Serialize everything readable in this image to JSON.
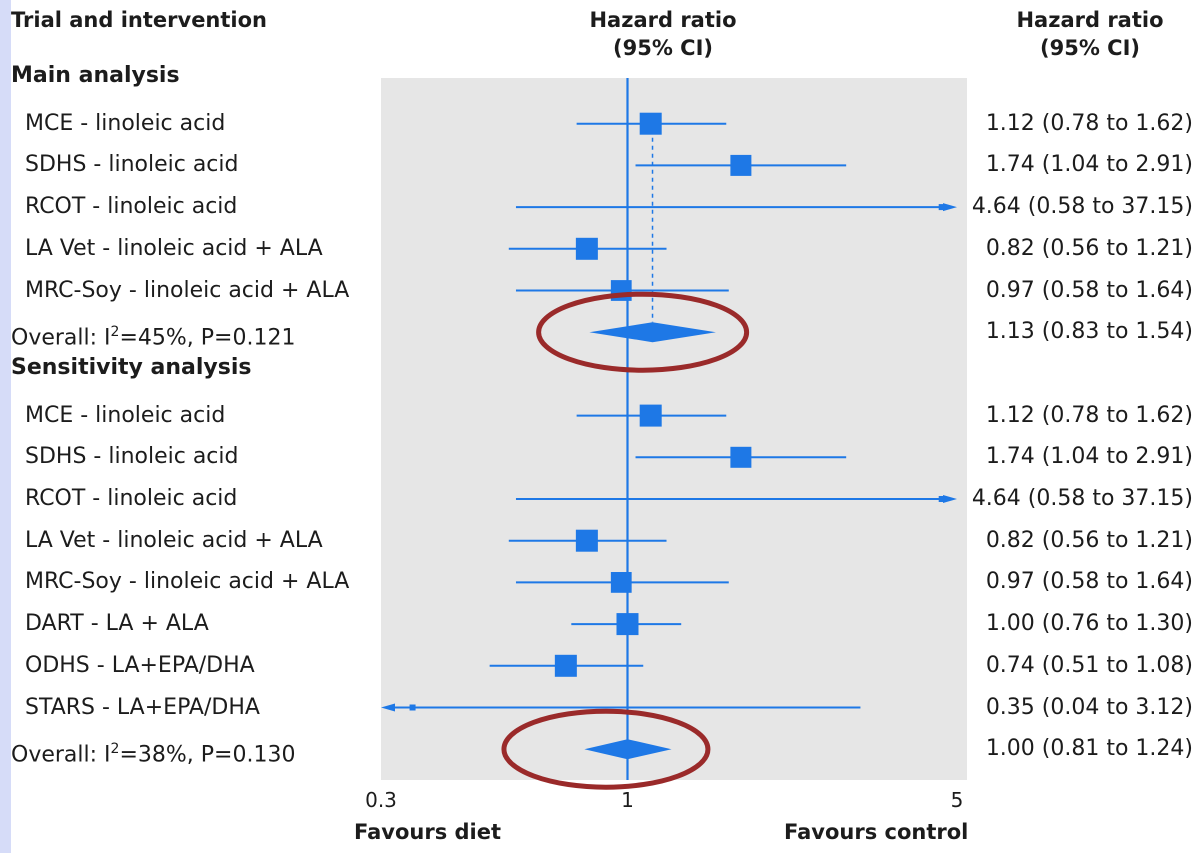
{
  "header": {
    "col1": "Trial and intervention",
    "col2_line1": "Hazard ratio",
    "col2_line2": "(95% CI)",
    "col3_line1": "Hazard ratio",
    "col3_line2": "(95% CI)"
  },
  "footer": {
    "left": "Favours diet",
    "right": "Favours control"
  },
  "colors": {
    "marker": "#1e78e6",
    "highlight": "#9a2a2a",
    "plot_bg": "#e6e6e6"
  },
  "chart_data": {
    "type": "forest",
    "xscale": "log",
    "xlim": [
      0.3,
      5
    ],
    "xticks": [
      {
        "value": 0.3,
        "label": "0.3"
      },
      {
        "value": 1,
        "label": "1"
      },
      {
        "value": 5,
        "label": "5"
      }
    ],
    "reference_line": 1,
    "sections": [
      {
        "title": "Main analysis",
        "pooled_reference": 1.13,
        "studies": [
          {
            "label": "MCE - linoleic acid",
            "hr": 1.12,
            "lo": 0.78,
            "hi": 1.62,
            "ci_text": "1.12 (0.78 to 1.62)"
          },
          {
            "label": "SDHS - linoleic acid",
            "hr": 1.74,
            "lo": 1.04,
            "hi": 2.91,
            "ci_text": "1.74 (1.04 to 2.91)"
          },
          {
            "label": "RCOT - linoleic acid",
            "hr": 4.64,
            "lo": 0.58,
            "hi": 37.15,
            "ci_text": "4.64 (0.58 to 37.15)"
          },
          {
            "label": "LA Vet - linoleic acid + ALA",
            "hr": 0.82,
            "lo": 0.56,
            "hi": 1.21,
            "ci_text": "0.82 (0.56 to 1.21)"
          },
          {
            "label": "MRC-Soy - linoleic acid + ALA",
            "hr": 0.97,
            "lo": 0.58,
            "hi": 1.64,
            "ci_text": "0.97 (0.58 to 1.64)"
          }
        ],
        "overall": {
          "label_pre": "Overall: I",
          "sup": "2",
          "label_post": "=45%, P=0.121",
          "hr": 1.13,
          "lo": 0.83,
          "hi": 1.54,
          "ci_text": "1.13 (0.83 to 1.54)"
        }
      },
      {
        "title": "Sensitivity analysis",
        "studies": [
          {
            "label": "MCE - linoleic acid",
            "hr": 1.12,
            "lo": 0.78,
            "hi": 1.62,
            "ci_text": "1.12 (0.78 to 1.62)"
          },
          {
            "label": "SDHS - linoleic acid",
            "hr": 1.74,
            "lo": 1.04,
            "hi": 2.91,
            "ci_text": "1.74 (1.04 to 2.91)"
          },
          {
            "label": "RCOT - linoleic acid",
            "hr": 4.64,
            "lo": 0.58,
            "hi": 37.15,
            "ci_text": "4.64 (0.58 to 37.15)"
          },
          {
            "label": "LA Vet - linoleic acid + ALA",
            "hr": 0.82,
            "lo": 0.56,
            "hi": 1.21,
            "ci_text": "0.82 (0.56 to 1.21)"
          },
          {
            "label": "MRC-Soy - linoleic acid + ALA",
            "hr": 0.97,
            "lo": 0.58,
            "hi": 1.64,
            "ci_text": "0.97 (0.58 to 1.64)"
          },
          {
            "label": "DART - LA + ALA",
            "hr": 1.0,
            "lo": 0.76,
            "hi": 1.3,
            "ci_text": "1.00 (0.76 to 1.30)"
          },
          {
            "label": "ODHS - LA+EPA/DHA",
            "hr": 0.74,
            "lo": 0.51,
            "hi": 1.08,
            "ci_text": "0.74 (0.51 to 1.08)"
          },
          {
            "label": "STARS - LA+EPA/DHA",
            "hr": 0.35,
            "lo": 0.04,
            "hi": 3.12,
            "ci_text": "0.35 (0.04 to 3.12)"
          }
        ],
        "overall": {
          "label_pre": "Overall: I",
          "sup": "2",
          "label_post": "=38%, P=0.130",
          "hr": 1.0,
          "lo": 0.81,
          "hi": 1.24,
          "ci_text": "1.00 (0.81 to 1.24)"
        }
      }
    ]
  }
}
